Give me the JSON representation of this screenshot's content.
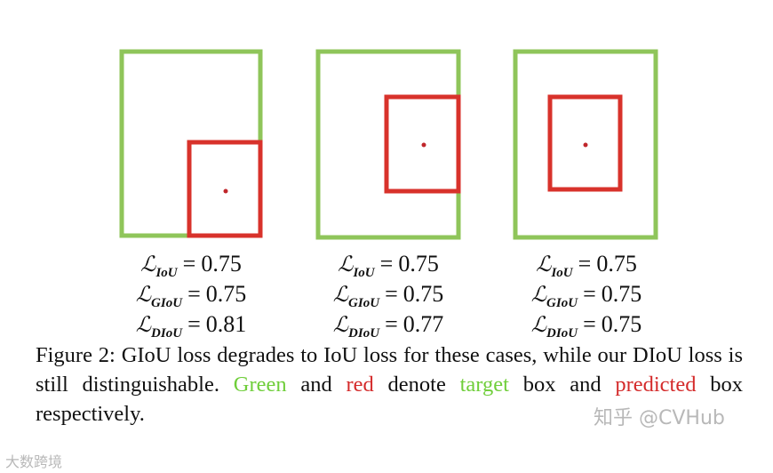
{
  "panels": [
    {
      "losses": [
        {
          "symbol": "ℒ",
          "subscript": "IoU",
          "relation": "=",
          "value": 0.75
        },
        {
          "symbol": "ℒ",
          "subscript": "GIoU",
          "relation": "=",
          "value": 0.75
        },
        {
          "symbol": "ℒ",
          "subscript": "DIoU",
          "relation": "=",
          "value": 0.81
        }
      ]
    },
    {
      "losses": [
        {
          "symbol": "ℒ",
          "subscript": "IoU",
          "relation": "=",
          "value": 0.75
        },
        {
          "symbol": "ℒ",
          "subscript": "GIoU",
          "relation": "=",
          "value": 0.75
        },
        {
          "symbol": "ℒ",
          "subscript": "DIoU",
          "relation": "=",
          "value": 0.77
        }
      ]
    },
    {
      "losses": [
        {
          "symbol": "ℒ",
          "subscript": "IoU",
          "relation": "=",
          "value": 0.75
        },
        {
          "symbol": "ℒ",
          "subscript": "GIoU",
          "relation": "=",
          "value": 0.75
        },
        {
          "symbol": "ℒ",
          "subscript": "DIoU",
          "relation": "=",
          "value": 0.75
        }
      ]
    }
  ],
  "caption": [
    {
      "text": "Figure 2: GIoU loss degrades to IoU loss for these cases, while our DIoU loss is still distinguishable. "
    },
    {
      "text": "Green",
      "color": "green"
    },
    {
      "text": " and "
    },
    {
      "text": "red",
      "color": "red"
    },
    {
      "text": " denote "
    },
    {
      "text": "target",
      "color": "green"
    },
    {
      "text": " box and "
    },
    {
      "text": "predicted",
      "color": "red"
    },
    {
      "text": " box respectively."
    }
  ],
  "watermarks": [
    "知乎 @CVHub",
    "大数跨境"
  ]
}
